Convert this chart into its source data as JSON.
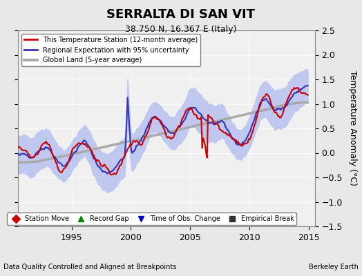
{
  "title": "SERRALTA DI SAN VIT",
  "subtitle": "38.750 N, 16.367 E (Italy)",
  "ylabel": "Temperature Anomaly (°C)",
  "xlabel_left": "Data Quality Controlled and Aligned at Breakpoints",
  "xlabel_right": "Berkeley Earth",
  "ylim": [
    -1.5,
    2.5
  ],
  "xlim": [
    1990.5,
    2015.5
  ],
  "xticks": [
    1995,
    2000,
    2005,
    2010,
    2015
  ],
  "yticks": [
    -1.5,
    -1.0,
    -0.5,
    0.0,
    0.5,
    1.0,
    1.5,
    2.0,
    2.5
  ],
  "legend_items": [
    {
      "label": "This Temperature Station (12-month average)",
      "color": "#cc0000",
      "lw": 2
    },
    {
      "label": "Regional Expectation with 95% uncertainty",
      "color": "#4444cc",
      "lw": 2
    },
    {
      "label": "Global Land (5-year average)",
      "color": "#aaaaaa",
      "lw": 3
    }
  ],
  "bottom_legend_items": [
    {
      "label": "Station Move",
      "color": "#cc0000",
      "marker": "D"
    },
    {
      "label": "Record Gap",
      "color": "#008800",
      "marker": "^"
    },
    {
      "label": "Time of Obs. Change",
      "color": "#0000cc",
      "marker": "v"
    },
    {
      "label": "Empirical Break",
      "color": "#333333",
      "marker": "s"
    }
  ],
  "bg_color": "#e8e8e8",
  "plot_bg_color": "#f0f0f0",
  "regional_fill_color": "#c0c8f0",
  "station_color": "#cc0000",
  "regional_color": "#3333bb",
  "global_color": "#aaaaaa"
}
